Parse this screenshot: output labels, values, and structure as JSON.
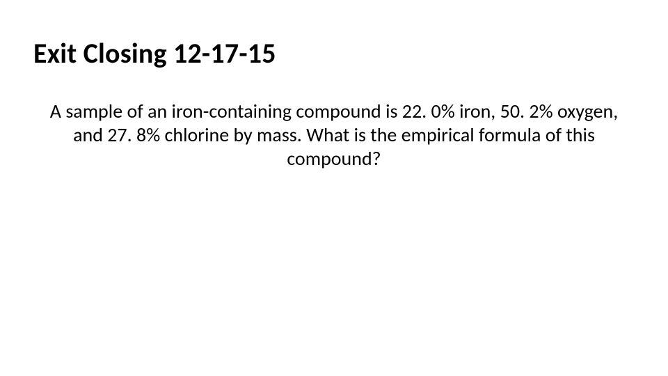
{
  "slide": {
    "title": "Exit Closing 12-17-15",
    "body": "A sample of an iron-containing compound is 22. 0% iron, 50. 2% oxygen, and 27. 8% chlorine by mass. What is the empirical formula of this compound?",
    "title_fontsize": 40,
    "title_fontweight": 700,
    "body_fontsize": 28,
    "body_fontweight": 400,
    "text_color": "#000000",
    "background_color": "#ffffff",
    "font_family": "Calibri"
  }
}
